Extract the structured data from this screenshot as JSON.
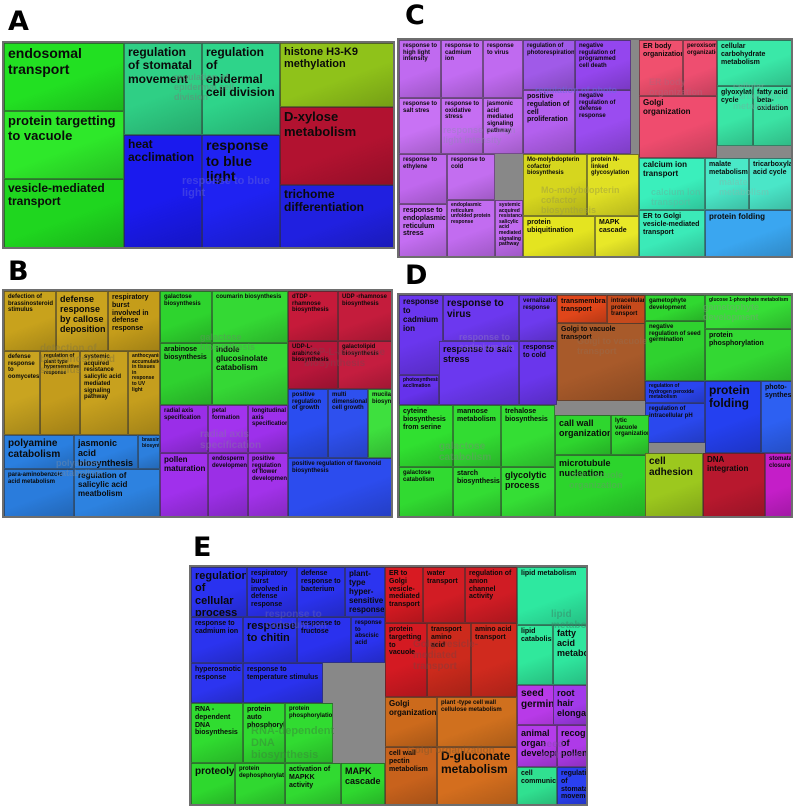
{
  "panels": [
    {
      "letter": "A",
      "cells": [
        {
          "label": "endosomal transport",
          "color": "#22e022"
        },
        {
          "label": "protein targetting to vacuole",
          "color": "#2ee82a"
        },
        {
          "label": "vesicle-mediated transport",
          "color": "#1fd61f"
        },
        {
          "label": "regulation of stomatal movement",
          "color": "#2fcf85"
        },
        {
          "label": "regulation of epidermal cell division",
          "color": "#2ed48a"
        },
        {
          "label": "heat acclimation",
          "color": "#1a1aee"
        },
        {
          "label": "response to blue light",
          "color": "#1f22f2"
        },
        {
          "label": "histone H3-K9 methylation",
          "color": "#8fc21a"
        },
        {
          "label": "D-xylose metabolism",
          "color": "#b21230"
        },
        {
          "label": "trichome differentiation",
          "color": "#2020e0"
        }
      ]
    },
    {
      "letter": "B",
      "cells": [
        {
          "label": "defection of brassinosteroid stimulus",
          "color": "#c8a21c"
        },
        {
          "label": "defense response by callose deposition",
          "color": "#caa31e"
        },
        {
          "label": "respiratory burst involved in defense response",
          "color": "#c59d1a"
        },
        {
          "label": "defense response to oomycetes",
          "color": "#c9a420"
        },
        {
          "label": "regulation of plant type hypersensitive response",
          "color": "#c49c1c"
        },
        {
          "label": "systemic acquired resistance salicylic acid mediated signaling pathway",
          "color": "#c8a11e"
        },
        {
          "label": "anthocyanin accumulation in tissues in response to UV light",
          "color": "#c59e1d"
        },
        {
          "label": "polyamine catabolism",
          "color": "#2a7fe0"
        },
        {
          "label": "jasmonic acid biosynthesis",
          "color": "#2b80e2"
        },
        {
          "label": "brassinosteroid biosynthesis",
          "color": "#2c7fdd"
        },
        {
          "label": "para-aminobenzoic acid metabolism",
          "color": "#2a7cdc"
        },
        {
          "label": "regulation of salicylic acid meatbolism",
          "color": "#2d82e0"
        },
        {
          "label": "galactose biosynthesis",
          "color": "#2ed42e"
        },
        {
          "label": "coumarin biosynthesis",
          "color": "#34d934"
        },
        {
          "label": "arabinose biosynthesis",
          "color": "#2fd12f"
        },
        {
          "label": "indole glucosinolate catabolism",
          "color": "#35d835"
        },
        {
          "label": "dTDP -rhamnose biosynthesis",
          "color": "#c61a3a"
        },
        {
          "label": "UDP -rhamnose biosynthesis",
          "color": "#c41c3c"
        },
        {
          "label": "UDP-L-arabinose biosynthesis",
          "color": "#b8163a"
        },
        {
          "label": "galactolipid biosynthesis",
          "color": "#c41d3f"
        },
        {
          "label": "radial axis specification",
          "color": "#9a2ee8"
        },
        {
          "label": "petal formation",
          "color": "#a233ee"
        },
        {
          "label": "longitudinal axis specification",
          "color": "#9d30eb"
        },
        {
          "label": "pollen maturation",
          "color": "#a030ec"
        },
        {
          "label": "endosperm development",
          "color": "#9b2fe6"
        },
        {
          "label": "positive regulation of flower development",
          "color": "#a232ea"
        },
        {
          "label": "positive regulation of growth",
          "color": "#2a4df0"
        },
        {
          "label": "multi dimensional cell growth",
          "color": "#2e50ee"
        },
        {
          "label": "mucilage biosynthesis",
          "color": "#3ee03e"
        },
        {
          "label": "positive regulation of flavonoid biosynthesis",
          "color": "#2c4cee"
        }
      ]
    },
    {
      "letter": "C",
      "cells": [
        {
          "label": "response to high light intensity",
          "color": "#c06af0"
        },
        {
          "label": "response to cadmium ion",
          "color": "#c26cf2"
        },
        {
          "label": "response to virus",
          "color": "#c06af0"
        },
        {
          "label": "regulation of photorespiration",
          "color": "#a05ae8"
        },
        {
          "label": "negative regulation of programmed cell death",
          "color": "#9446ee"
        },
        {
          "label": "response to salt stres",
          "color": "#c872f4"
        },
        {
          "label": "response to oxidative stress",
          "color": "#c56ef2"
        },
        {
          "label": "positive regulation of cell proliferation",
          "color": "#b360ee"
        },
        {
          "label": "negative regulation of defense response",
          "color": "#9a4cf0"
        },
        {
          "label": "response to ethylene",
          "color": "#c068ee"
        },
        {
          "label": "response to endoplasmic reticulum stress",
          "color": "#c46ef2"
        },
        {
          "label": "jasmonic acid mediated signaling pathway",
          "color": "#c470f2"
        },
        {
          "label": "response to cold",
          "color": "#c36ef0"
        },
        {
          "label": "endoplasmic reticulum unfolded protein response",
          "color": "#c26cf0"
        },
        {
          "label": "systemic acquired resistance salicylic acid mediated signaling pathway",
          "color": "#c16bef"
        },
        {
          "label": "Mo-molybdopterin cofactor biosynthesis",
          "color": "#d6d61e"
        },
        {
          "label": "protein N-linked glycosylation",
          "color": "#e0e024"
        },
        {
          "label": "protein ubiquitination",
          "color": "#e4e420"
        },
        {
          "label": "MAPK cascade",
          "color": "#e8e828"
        },
        {
          "label": "ER body organization",
          "color": "#f0506e"
        },
        {
          "label": "peroxisome organization",
          "color": "#ee4e70"
        },
        {
          "label": "Golgi organization",
          "color": "#ef4c6e"
        },
        {
          "label": "calcium ion transport",
          "color": "#3aefbc"
        },
        {
          "label": "ER to Golgi vesicle-mediated transport",
          "color": "#3beab8"
        },
        {
          "label": "cellular carbohydrate metabolism",
          "color": "#3ae8a8"
        },
        {
          "label": "glyoxylate cycle",
          "color": "#3ae6a6"
        },
        {
          "label": "fatty acid beta-oxidation",
          "color": "#3be3a4"
        },
        {
          "label": "malate metabolism",
          "color": "#4ae8c8"
        },
        {
          "label": "tricarboxylate acid cycle",
          "color": "#4ae6c8"
        },
        {
          "label": "protein folding",
          "color": "#3aa6f0"
        }
      ]
    },
    {
      "letter": "D",
      "cells": [
        {
          "label": "response to cadmium ion",
          "color": "#6a36ee"
        },
        {
          "label": "response to virus",
          "color": "#6c38ef"
        },
        {
          "label": "vernalization response",
          "color": "#6d3aee"
        },
        {
          "label": "photosynthesis acclimation",
          "color": "#6632ec"
        },
        {
          "label": "response to salt stress",
          "color": "#6b38ef"
        },
        {
          "label": "response to cold",
          "color": "#6a36ec"
        },
        {
          "label": "transmembrane transport",
          "color": "#e0461a"
        },
        {
          "label": "intracellular protein transport",
          "color": "#c64a1c"
        },
        {
          "label": "Golgi to vacuole transport",
          "color": "#a85a2a"
        },
        {
          "label": "gametophyte development",
          "color": "#30d830"
        },
        {
          "label": "negative regulation of seed germination",
          "color": "#2fd22f"
        },
        {
          "label": "regulation of hydrogen peroxide metabolism",
          "color": "#2a45ee"
        },
        {
          "label": "regulation of intracellular pH",
          "color": "#2a48ee"
        },
        {
          "label": "protein folding",
          "color": "#2440f0"
        },
        {
          "label": "photo-synthesis",
          "color": "#2d60f2"
        },
        {
          "label": "glucose 1-phosphate metabolism",
          "color": "#36de36"
        },
        {
          "label": "protein phosphorylation",
          "color": "#33d833"
        },
        {
          "label": "cyteine biosynthesis from serine",
          "color": "#30e030"
        },
        {
          "label": "mannose metabolism",
          "color": "#32dc32"
        },
        {
          "label": "trehalose biosynthesis",
          "color": "#34de34"
        },
        {
          "label": "galactose catabolism",
          "color": "#31da31"
        },
        {
          "label": "starch biosynthesis",
          "color": "#33dc33"
        },
        {
          "label": "glycolytic process",
          "color": "#35de35"
        },
        {
          "label": "call wall organization",
          "color": "#2ed62e"
        },
        {
          "label": "lytic vacuole organization",
          "color": "#30d830"
        },
        {
          "label": "microtubule nucleation",
          "color": "#2cd42c"
        },
        {
          "label": "cell adhesion",
          "color": "#9cc81e"
        },
        {
          "label": "DNA integration",
          "color": "#b8182e"
        },
        {
          "label": "stomatal closure",
          "color": "#c41ec8"
        }
      ]
    },
    {
      "letter": "E",
      "cells": [
        {
          "label": "regulation of cellular process",
          "color": "#2a32f0"
        },
        {
          "label": "respiratory burst involved in defense response",
          "color": "#2a30ee"
        },
        {
          "label": "defense response to bacterium",
          "color": "#2a32ee"
        },
        {
          "label": "plant-type hyper-sensitive response",
          "color": "#2c34f0"
        },
        {
          "label": "response to cadmium ion",
          "color": "#2b33ef"
        },
        {
          "label": "response to chitin",
          "color": "#2a32ee"
        },
        {
          "label": "response to fructose",
          "color": "#2a31ee"
        },
        {
          "label": "response to abscisic acid",
          "color": "#2b33ef"
        },
        {
          "label": "hyperosmotic response",
          "color": "#2c34f0"
        },
        {
          "label": "response to temperature stimulus",
          "color": "#2a32ee"
        },
        {
          "label": "RNA -dependent DNA biosynthesis",
          "color": "#30dc30"
        },
        {
          "label": "protein auto phosphorylation",
          "color": "#30da30"
        },
        {
          "label": "protein phosphorylation",
          "color": "#31db31"
        },
        {
          "label": "proteolysis",
          "color": "#2ed82e"
        },
        {
          "label": "protein dephosphorylation",
          "color": "#30d830"
        },
        {
          "label": "activation of MAPKK activity",
          "color": "#31da31"
        },
        {
          "label": "MAPK cascade",
          "color": "#2fd82f"
        },
        {
          "label": "ER to Golgi vesicle-mediated transport",
          "color": "#d81a22"
        },
        {
          "label": "water transport",
          "color": "#d21c24"
        },
        {
          "label": "regulation of anion channel activity",
          "color": "#d01c24"
        },
        {
          "label": "protein targetting to vacuole",
          "color": "#d41a22"
        },
        {
          "label": "transport amino acid",
          "color": "#cc2a1c"
        },
        {
          "label": "amino acid transport",
          "color": "#d02a1e"
        },
        {
          "label": "Golgi organization",
          "color": "#cc6a1c"
        },
        {
          "label": "plant -type cell wall cellulose metabolism",
          "color": "#d0701e"
        },
        {
          "label": "cell wall pectin metabolism",
          "color": "#c8621c"
        },
        {
          "label": "D-gluconate metabolism",
          "color": "#d46e1e"
        },
        {
          "label": "lipid metabolism",
          "color": "#2ee8a0"
        },
        {
          "label": "lipid catabolism",
          "color": "#30e89c"
        },
        {
          "label": "fatty acid metabolism",
          "color": "#2fe69e"
        },
        {
          "label": "seed germination",
          "color": "#b83ae8"
        },
        {
          "label": "root hair elongation",
          "color": "#a23aea"
        },
        {
          "label": "animal organ development",
          "color": "#b43cea"
        },
        {
          "label": "recognation of pollen",
          "color": "#ae3ae8"
        },
        {
          "label": "cell communication",
          "color": "#30e090"
        },
        {
          "label": "regulation of stomatal movement",
          "color": "#2a40f0"
        }
      ]
    }
  ],
  "ghost_labels": {
    "A": [
      "regulation of epidermal cell division",
      "response to blue light"
    ],
    "B": [
      "detection of brassinosteroid stimulus",
      "polyamine catabolism",
      "galactose biosynthesis",
      "UDP-L-arabinose biosynthesis",
      "radial axis specification"
    ],
    "C": [
      "regulation of photo",
      "response to high light intensity",
      "ER body organization",
      "cellular carbohydrate metabolism",
      "Mo-molybdopterin cofactor biosynthesis",
      "calcium ion transport",
      "malate metabolism"
    ],
    "D": [
      "response to cadmium ion",
      "gametophyte development",
      "Golgi to vacuole transport",
      "galactose catabolism",
      "lytic vacuole organization"
    ],
    "E": [
      "response to cadmium ion",
      "lipid metabolism",
      "Golgi vesicle-mediated transport",
      "RNA-dependent DNA biosynthesis",
      "Golgi organization",
      "seed germination"
    ]
  }
}
